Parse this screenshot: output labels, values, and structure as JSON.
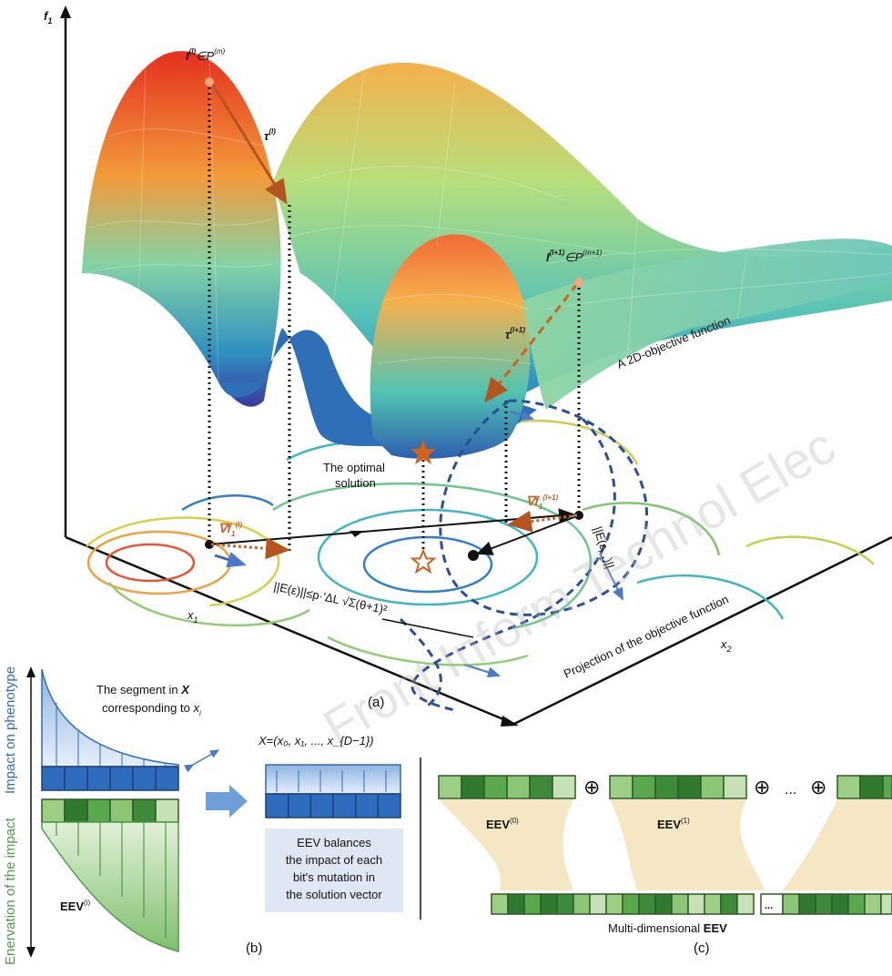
{
  "panel_a": {
    "axis_f1": "f",
    "axis_f1_sub": "1",
    "axis_x1": "x",
    "axis_x1_sub": "1",
    "axis_x2": "x",
    "axis_x2_sub": "2",
    "point_l": "I",
    "point_l_sup": "(l)",
    "point_l_set": "∈P",
    "point_l_set_sup": "(m)",
    "point_l1": "I",
    "point_l1_sup": "(l+1)",
    "point_l1_set": "∈P",
    "point_l1_set_sup": "(m+1)",
    "tau_l": "τ",
    "tau_l_sup": "(l)",
    "tau_l1": "τ",
    "tau_l1_sup": "(l+1)",
    "surface_label": "A 2D-objective function",
    "optimal_label_1": "The optimal",
    "optimal_label_2": "solution",
    "grad_l": "∇f",
    "grad_l_sub": "1",
    "grad_l_sup": "(l)",
    "grad_l1": "∇f",
    "grad_l1_sub": "1",
    "grad_l1_sup": "(l+1)",
    "bound_formula": "||E(ε)||≤p·'ΔL √Σ(θ+1)²",
    "eps_norm": "||E(ε",
    "eps_norm_tail": ")||",
    "eps_norm_sub": "l+1",
    "projection_label": "Projection of the objective function",
    "watermark": "Front Inform Technol Elec",
    "caption": "(a)"
  },
  "panel_b": {
    "side_label_green": "Enervation of the impact",
    "side_label_blue": "Impact on phenotype",
    "segment_text_1": "The segment in",
    "segment_text_bold": "X",
    "segment_text_2": "corresponding to",
    "segment_var": "x",
    "segment_var_sub": "i",
    "eev_label": "EEV",
    "eev_sup": "(i)",
    "x_vector": "X=(x₀, x₁, ..., x_{D−1})",
    "eev_box_text": [
      "EEV balances",
      "the impact of each",
      "bit's mutation in",
      "the solution vector"
    ],
    "caption": "(b)"
  },
  "panel_c": {
    "eev0": "EEV",
    "eev0_sup": "(0)",
    "eev1": "EEV",
    "eev1_sup": "(1)",
    "oplus": "⊕",
    "ellipsis": "...",
    "mid_cell": "...",
    "multi_prefix": "Multi-dimensional",
    "multi_bold": "EEV",
    "caption": "(c)"
  },
  "colors": {
    "surface_high": "#e8432a",
    "surface_mid": "#7fd3a8",
    "surface_low": "#3a3fa8",
    "contour_blue": "#2f7fd0",
    "dashed_blue": "#2a4f9c",
    "tau_brown": "#b4541f",
    "star_orange": "#d0621e",
    "eev_blue": "#2f6cbd",
    "eev_green": "#4c9e45",
    "band_tan": "#f5e6c4"
  }
}
